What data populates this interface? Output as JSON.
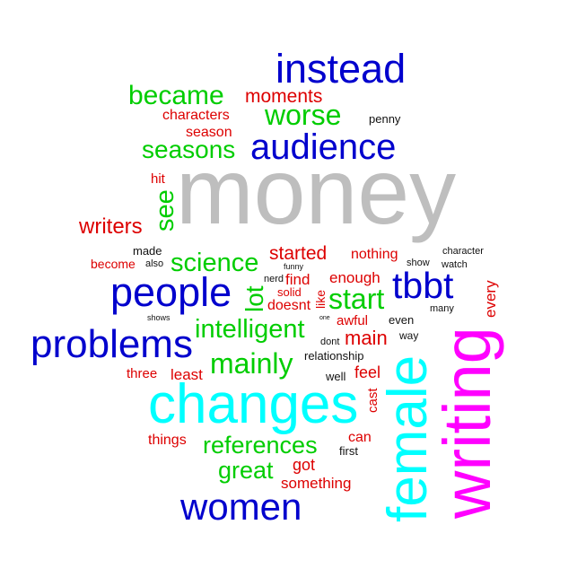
{
  "colors": {
    "gray": "#bebebe",
    "magenta": "#ff00ff",
    "cyan": "#00ffff",
    "blue": "#0000cd",
    "green": "#00cd00",
    "red": "#dd0000",
    "black": "#111111"
  },
  "words": {
    "money": "money",
    "writing": "writing",
    "female": "female",
    "changes": "changes",
    "instead": "instead",
    "audience": "audience",
    "people": "people",
    "problems": "problems",
    "women": "women",
    "tbbt": "tbbt",
    "became": "became",
    "worse": "worse",
    "seasons": "seasons",
    "see": "see",
    "science": "science",
    "start": "start",
    "lot": "lot",
    "intelligent": "intelligent",
    "mainly": "mainly",
    "references": "references",
    "great": "great",
    "moments": "moments",
    "characters": "characters",
    "season": "season",
    "hit": "hit",
    "writers": "writers",
    "become": "become",
    "started": "started",
    "nothing": "nothing",
    "find": "find",
    "enough": "enough",
    "solid": "solid",
    "doesnt": "doesnt",
    "like": "like",
    "awful": "awful",
    "main": "main",
    "least": "least",
    "three": "three",
    "feel": "feel",
    "cast": "cast",
    "things": "things",
    "can": "can",
    "got": "got",
    "something": "something",
    "every": "every",
    "penny": "penny",
    "made": "made",
    "also": "also",
    "funny": "funny",
    "nerd": "nerd",
    "show": "show",
    "character": "character",
    "watch": "watch",
    "many": "many",
    "even": "even",
    "way": "way",
    "dont": "dont",
    "one": "one",
    "shows": "shows",
    "relationship": "relationship",
    "well": "well",
    "first": "first"
  }
}
